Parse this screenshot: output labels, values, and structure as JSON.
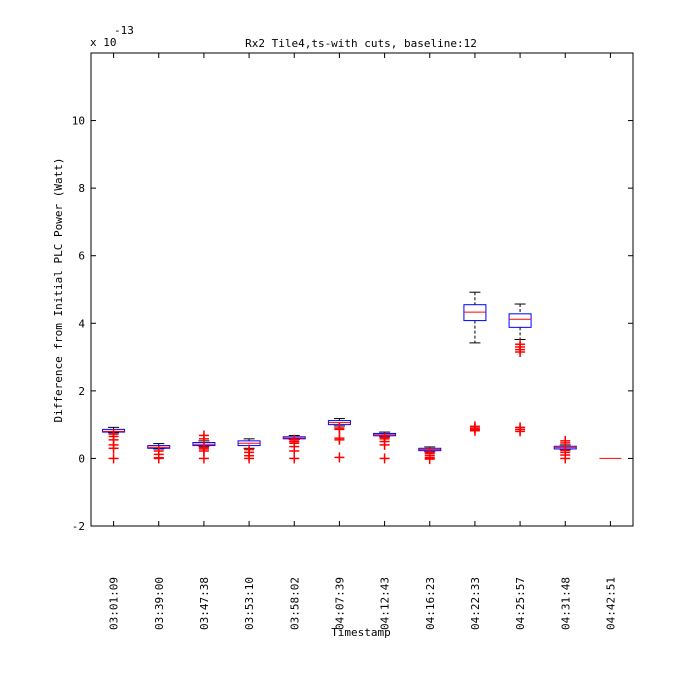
{
  "chart_data": {
    "type": "box",
    "title": "Rx2 Tile4,ts-with cuts, baseline:12",
    "xlabel": "Timestamp",
    "ylabel": "Difference from Initial PLC Power (Watt)",
    "exponent_prefix": "x 10",
    "exponent_power": "-13",
    "ylim": [
      -2,
      12
    ],
    "yticks": [
      -2,
      0,
      2,
      4,
      6,
      8,
      10
    ],
    "ytick_labels": [
      "-2",
      "0",
      "2",
      "4",
      "6",
      "8",
      "10"
    ],
    "categories": [
      "03:01:09",
      "03:39:00",
      "03:47:38",
      "03:53:10",
      "03:58:02",
      "04:07:39",
      "04:12:43",
      "04:16:23",
      "04:22:33",
      "04:25:57",
      "04:31:48",
      "04:42:51"
    ],
    "boxes": [
      {
        "min": 0.76,
        "q1": 0.78,
        "median": 0.8,
        "q3": 0.86,
        "max": 0.92,
        "outliers": [
          0.72,
          0.65,
          0.55,
          0.4,
          0.3,
          0.0
        ]
      },
      {
        "min": 0.28,
        "q1": 0.3,
        "median": 0.33,
        "q3": 0.38,
        "max": 0.44,
        "outliers": [
          0.22,
          0.12,
          0.02,
          0.0
        ]
      },
      {
        "min": 0.36,
        "q1": 0.38,
        "median": 0.42,
        "q3": 0.47,
        "max": 0.52,
        "outliers": [
          0.68,
          0.58,
          0.32,
          0.28,
          0.22,
          0.0
        ]
      },
      {
        "min": 0.3,
        "q1": 0.38,
        "median": 0.45,
        "q3": 0.52,
        "max": 0.58,
        "outliers": [
          0.26,
          0.18,
          0.08,
          0.0
        ]
      },
      {
        "min": 0.56,
        "q1": 0.58,
        "median": 0.6,
        "q3": 0.64,
        "max": 0.68,
        "outliers": [
          0.55,
          0.5,
          0.45,
          0.35,
          0.22,
          0.0
        ]
      },
      {
        "min": 0.96,
        "q1": 1.0,
        "median": 1.06,
        "q3": 1.12,
        "max": 1.18,
        "outliers": [
          0.9,
          0.86,
          0.6,
          0.55,
          0.03
        ]
      },
      {
        "min": 0.64,
        "q1": 0.67,
        "median": 0.7,
        "q3": 0.74,
        "max": 0.78,
        "outliers": [
          0.62,
          0.58,
          0.5,
          0.4,
          0.0
        ]
      },
      {
        "min": 0.2,
        "q1": 0.23,
        "median": 0.26,
        "q3": 0.3,
        "max": 0.34,
        "outliers": [
          0.18,
          0.14,
          0.08,
          0.02,
          -0.02
        ]
      },
      {
        "min": 3.42,
        "q1": 4.08,
        "median": 4.33,
        "q3": 4.55,
        "max": 4.92,
        "outliers": [
          0.95,
          0.9,
          0.86,
          0.82
        ]
      },
      {
        "min": 3.52,
        "q1": 3.88,
        "median": 4.12,
        "q3": 4.28,
        "max": 4.57,
        "outliers": [
          3.38,
          3.3,
          3.22,
          3.15,
          0.92,
          0.86,
          0.8
        ]
      },
      {
        "min": 0.26,
        "q1": 0.28,
        "median": 0.32,
        "q3": 0.36,
        "max": 0.4,
        "outliers": [
          0.52,
          0.46,
          0.24,
          0.18,
          0.1,
          0.0
        ]
      },
      {
        "min": 0.0,
        "q1": 0.0,
        "median": 0.0,
        "q3": 0.0,
        "max": 0.0,
        "outliers": []
      }
    ],
    "colors": {
      "box": "#0000ff",
      "median": "#ff0000",
      "whisker": "#000000",
      "outlier": "#ff0000"
    },
    "grid": false,
    "legend": "none"
  }
}
